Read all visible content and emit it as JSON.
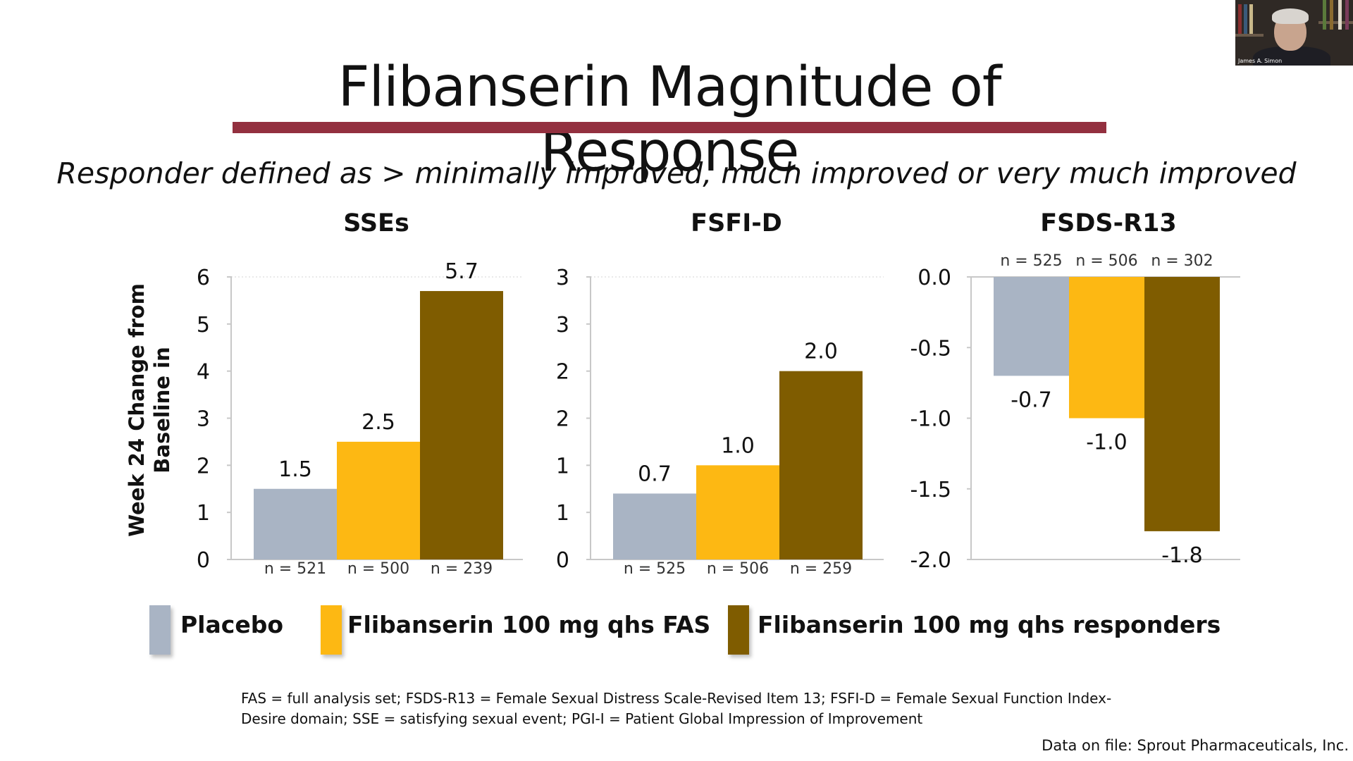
{
  "slide": {
    "title": "Flibanserin Magnitude of Response",
    "subtitle": "Responder defined as > minimally improved, much improved or very much improved",
    "footnote": "FAS = full analysis set; FSDS-R13 = Female Sexual Distress Scale-Revised Item 13; FSFI-D = Female Sexual Function Index-Desire domain; SSE = satisfying sexual event; PGI-I = Patient Global Impression of Improvement",
    "source": "Data on file: Sprout Pharmaceuticals, Inc.",
    "ylabel_line1": "Week 24 Change from",
    "ylabel_line2": "Baseline in"
  },
  "legend": [
    {
      "label": "Placebo",
      "color": "#a9b4c4"
    },
    {
      "label": "Flibanserin 100 mg qhs FAS",
      "color": "#fdb813"
    },
    {
      "label": "Flibanserin 100 mg qhs responders",
      "color": "#7f5c00"
    }
  ],
  "webcam": {
    "name": "James A. Simon"
  },
  "chart_data": [
    {
      "type": "bar",
      "title": "SSEs",
      "categories": [
        "Placebo",
        "Flibanserin 100 mg qhs FAS",
        "Flibanserin 100 mg qhs responders"
      ],
      "values": [
        1.5,
        2.5,
        5.7
      ],
      "labels": [
        "1.5",
        "2.5",
        "5.7"
      ],
      "n_labels": [
        "n = 521",
        "n = 500",
        "n = 239"
      ],
      "n_position": "bottom",
      "yticks": [
        "0",
        "1",
        "2",
        "3",
        "4",
        "5",
        "6"
      ],
      "ylim": [
        0,
        6
      ],
      "ylabel": "Week 24 Change from Baseline in"
    },
    {
      "type": "bar",
      "title": "FSFI-D",
      "categories": [
        "Placebo",
        "Flibanserin 100 mg qhs FAS",
        "Flibanserin 100 mg qhs responders"
      ],
      "values": [
        0.7,
        1.0,
        2.0
      ],
      "labels": [
        "0.7",
        "1.0",
        "2.0"
      ],
      "n_labels": [
        "n = 525",
        "n = 506",
        "n = 259"
      ],
      "n_position": "bottom",
      "yticks": [
        "0",
        "1",
        "1",
        "2",
        "2",
        "3",
        "3"
      ],
      "ylim": [
        0,
        3
      ],
      "ylabel": ""
    },
    {
      "type": "bar",
      "title": "FSDS-R13",
      "categories": [
        "Placebo",
        "Flibanserin 100 mg qhs FAS",
        "Flibanserin 100 mg qhs responders"
      ],
      "values": [
        -0.7,
        -1.0,
        -1.8
      ],
      "labels": [
        "-0.7",
        "-1.0",
        "-1.8"
      ],
      "n_labels": [
        "n = 525",
        "n = 506",
        "n = 302"
      ],
      "n_position": "top",
      "yticks": [
        "0.0",
        "-0.5",
        "-1.0",
        "-1.5",
        "-2.0"
      ],
      "ylim": [
        -2.0,
        0.0
      ],
      "ylabel": ""
    }
  ]
}
